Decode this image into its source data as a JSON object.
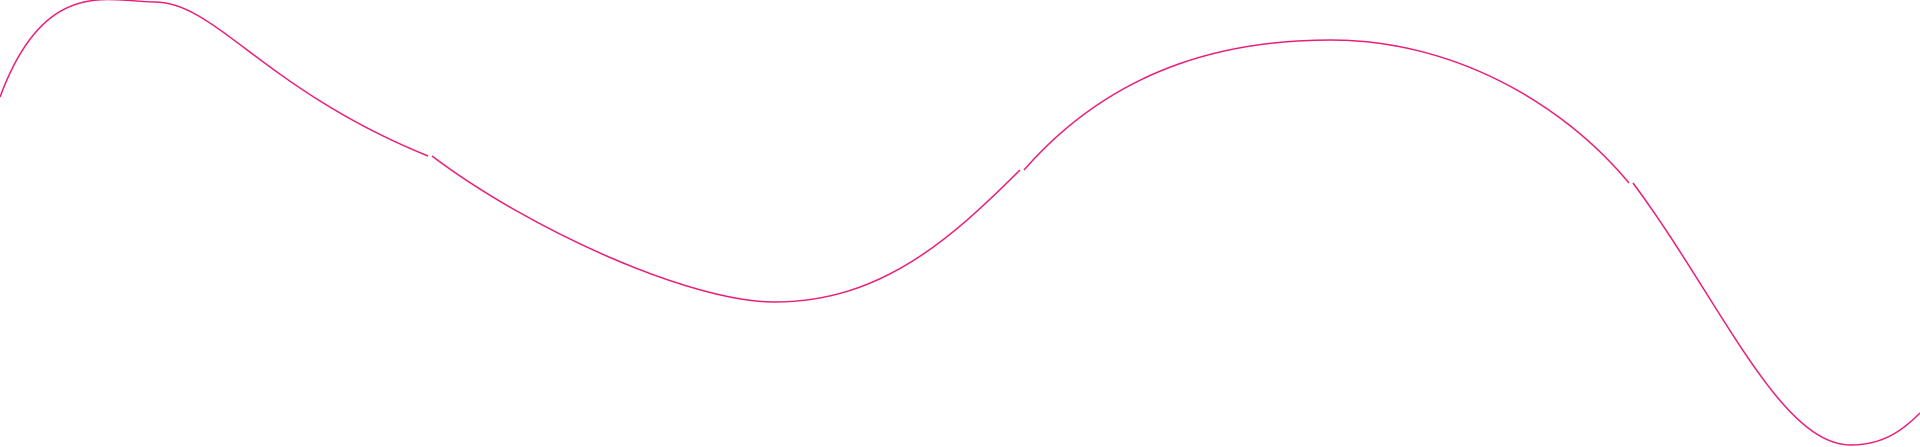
{
  "decoration": {
    "background_color": "#ffffff",
    "line_color": "#e91e7a",
    "segments": 4
  }
}
